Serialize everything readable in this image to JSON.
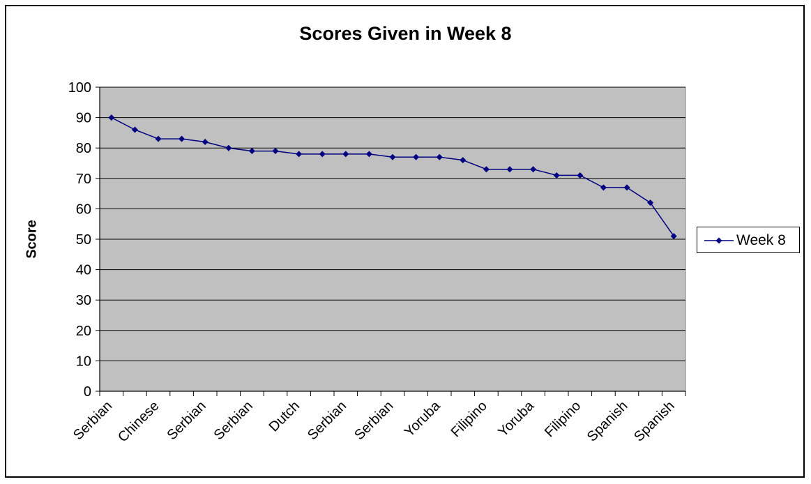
{
  "chart_data": {
    "type": "line",
    "title": "Scores Given in Week 8",
    "xlabel": "",
    "ylabel": "Score",
    "ylim": [
      0,
      100
    ],
    "y_ticks": [
      "0",
      "10",
      "20",
      "30",
      "40",
      "50",
      "60",
      "70",
      "80",
      "90",
      "100"
    ],
    "grid": true,
    "legend_position": "right",
    "x_tick_labels": [
      "Serbian",
      "Chinese",
      "Serbian",
      "Serbian",
      "Dutch",
      "Serbian",
      "Serbian",
      "Yoruba",
      "Filipino",
      "Yoruba",
      "Filipino",
      "Spanish",
      "Spanish"
    ],
    "series": [
      {
        "name": "Week 8",
        "color": "#000080",
        "values": [
          90,
          86,
          83,
          83,
          82,
          80,
          79,
          79,
          78,
          78,
          78,
          78,
          77,
          77,
          77,
          76,
          73,
          73,
          73,
          71,
          71,
          67,
          67,
          62,
          51
        ]
      }
    ],
    "plot_background": "#c0c0c0"
  }
}
